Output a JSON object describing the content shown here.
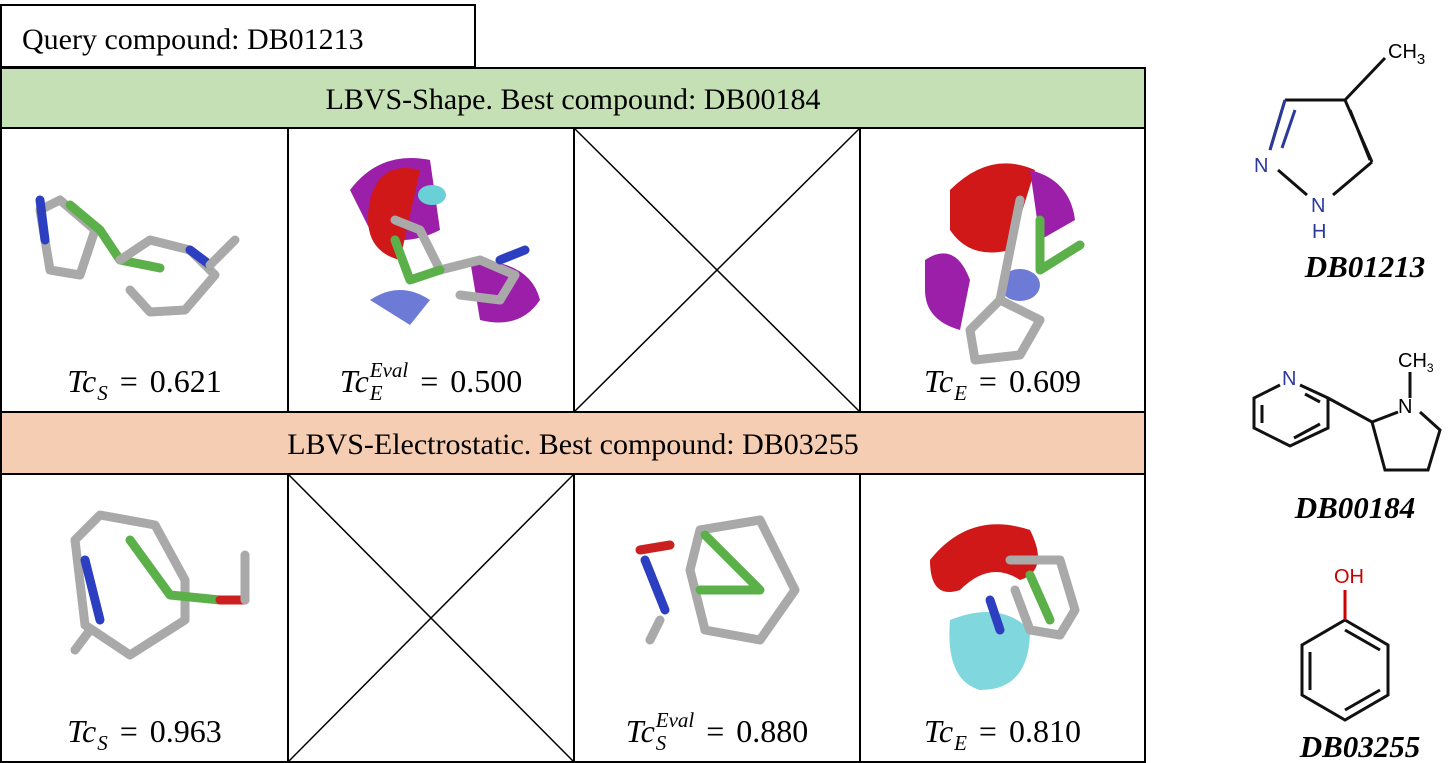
{
  "query": "Query compound: DB01213",
  "sections": [
    {
      "title": "LBVS-Shape. Best compound: DB00184",
      "cells": [
        {
          "symbol": "Tc",
          "sub": "S",
          "relation": "=",
          "value": "0.621"
        },
        {
          "symbol": "Tc",
          "sub": "E",
          "sup": "Eval",
          "relation": "=",
          "value": "0.500"
        },
        null,
        {
          "symbol": "Tc",
          "sub": "E",
          "relation": "=",
          "value": "0.609"
        }
      ]
    },
    {
      "title": "LBVS-Electrostatic. Best compound: DB03255",
      "cells": [
        {
          "symbol": "Tc",
          "sub": "S",
          "relation": "=",
          "value": "0.963"
        },
        null,
        {
          "symbol": "Tc",
          "sub": "S",
          "sup": "Eval",
          "relation": "=",
          "value": "0.880"
        },
        {
          "symbol": "Tc",
          "sub": "E",
          "relation": "=",
          "value": "0.810"
        }
      ]
    }
  ],
  "structures": [
    {
      "name": "DB01213",
      "atoms": [
        {
          "text": "CH",
          "sub": "3"
        },
        {
          "text": "N"
        },
        {
          "text": "N"
        },
        {
          "text": "H"
        }
      ]
    },
    {
      "name": "DB00184",
      "atoms": [
        {
          "text": "N"
        },
        {
          "text": "N"
        },
        {
          "text": "CH",
          "sub": "3"
        }
      ]
    },
    {
      "name": "DB03255",
      "atoms": [
        {
          "text": "OH"
        }
      ]
    }
  ]
}
